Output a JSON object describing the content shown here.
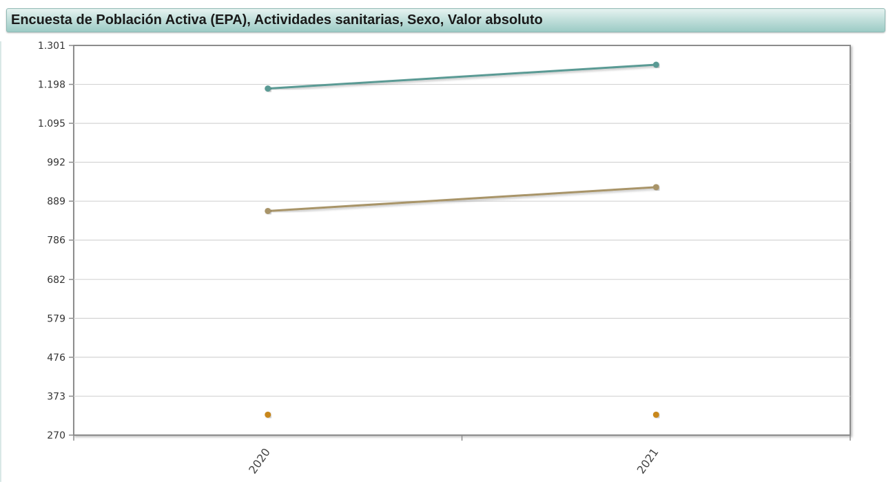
{
  "header": {
    "title": "Encuesta de Población Activa (EPA), Actividades sanitarias, Sexo, Valor absoluto"
  },
  "chart_data": {
    "type": "line",
    "title": "Encuesta de Población Activa (EPA), Actividades sanitarias, Sexo, Valor absoluto",
    "xlabel": "",
    "ylabel": "",
    "categories": [
      "2020",
      "2021"
    ],
    "ylim": [
      270,
      1301
    ],
    "yticks": [
      "270",
      "373",
      "476",
      "579",
      "682",
      "786",
      "889",
      "992",
      "1.095",
      "1.198",
      "1.301"
    ],
    "ytick_values": [
      270,
      373,
      476,
      579,
      682,
      786,
      889,
      992,
      1095,
      1198,
      1301
    ],
    "grid": true,
    "legend": "none",
    "series": [
      {
        "values": [
          1187,
          1250
        ],
        "color": "#5a9a94"
      },
      {
        "values": [
          863,
          926
        ],
        "color": "#a89468"
      },
      {
        "values": [
          324,
          324
        ],
        "color": "#c8871a"
      }
    ]
  }
}
